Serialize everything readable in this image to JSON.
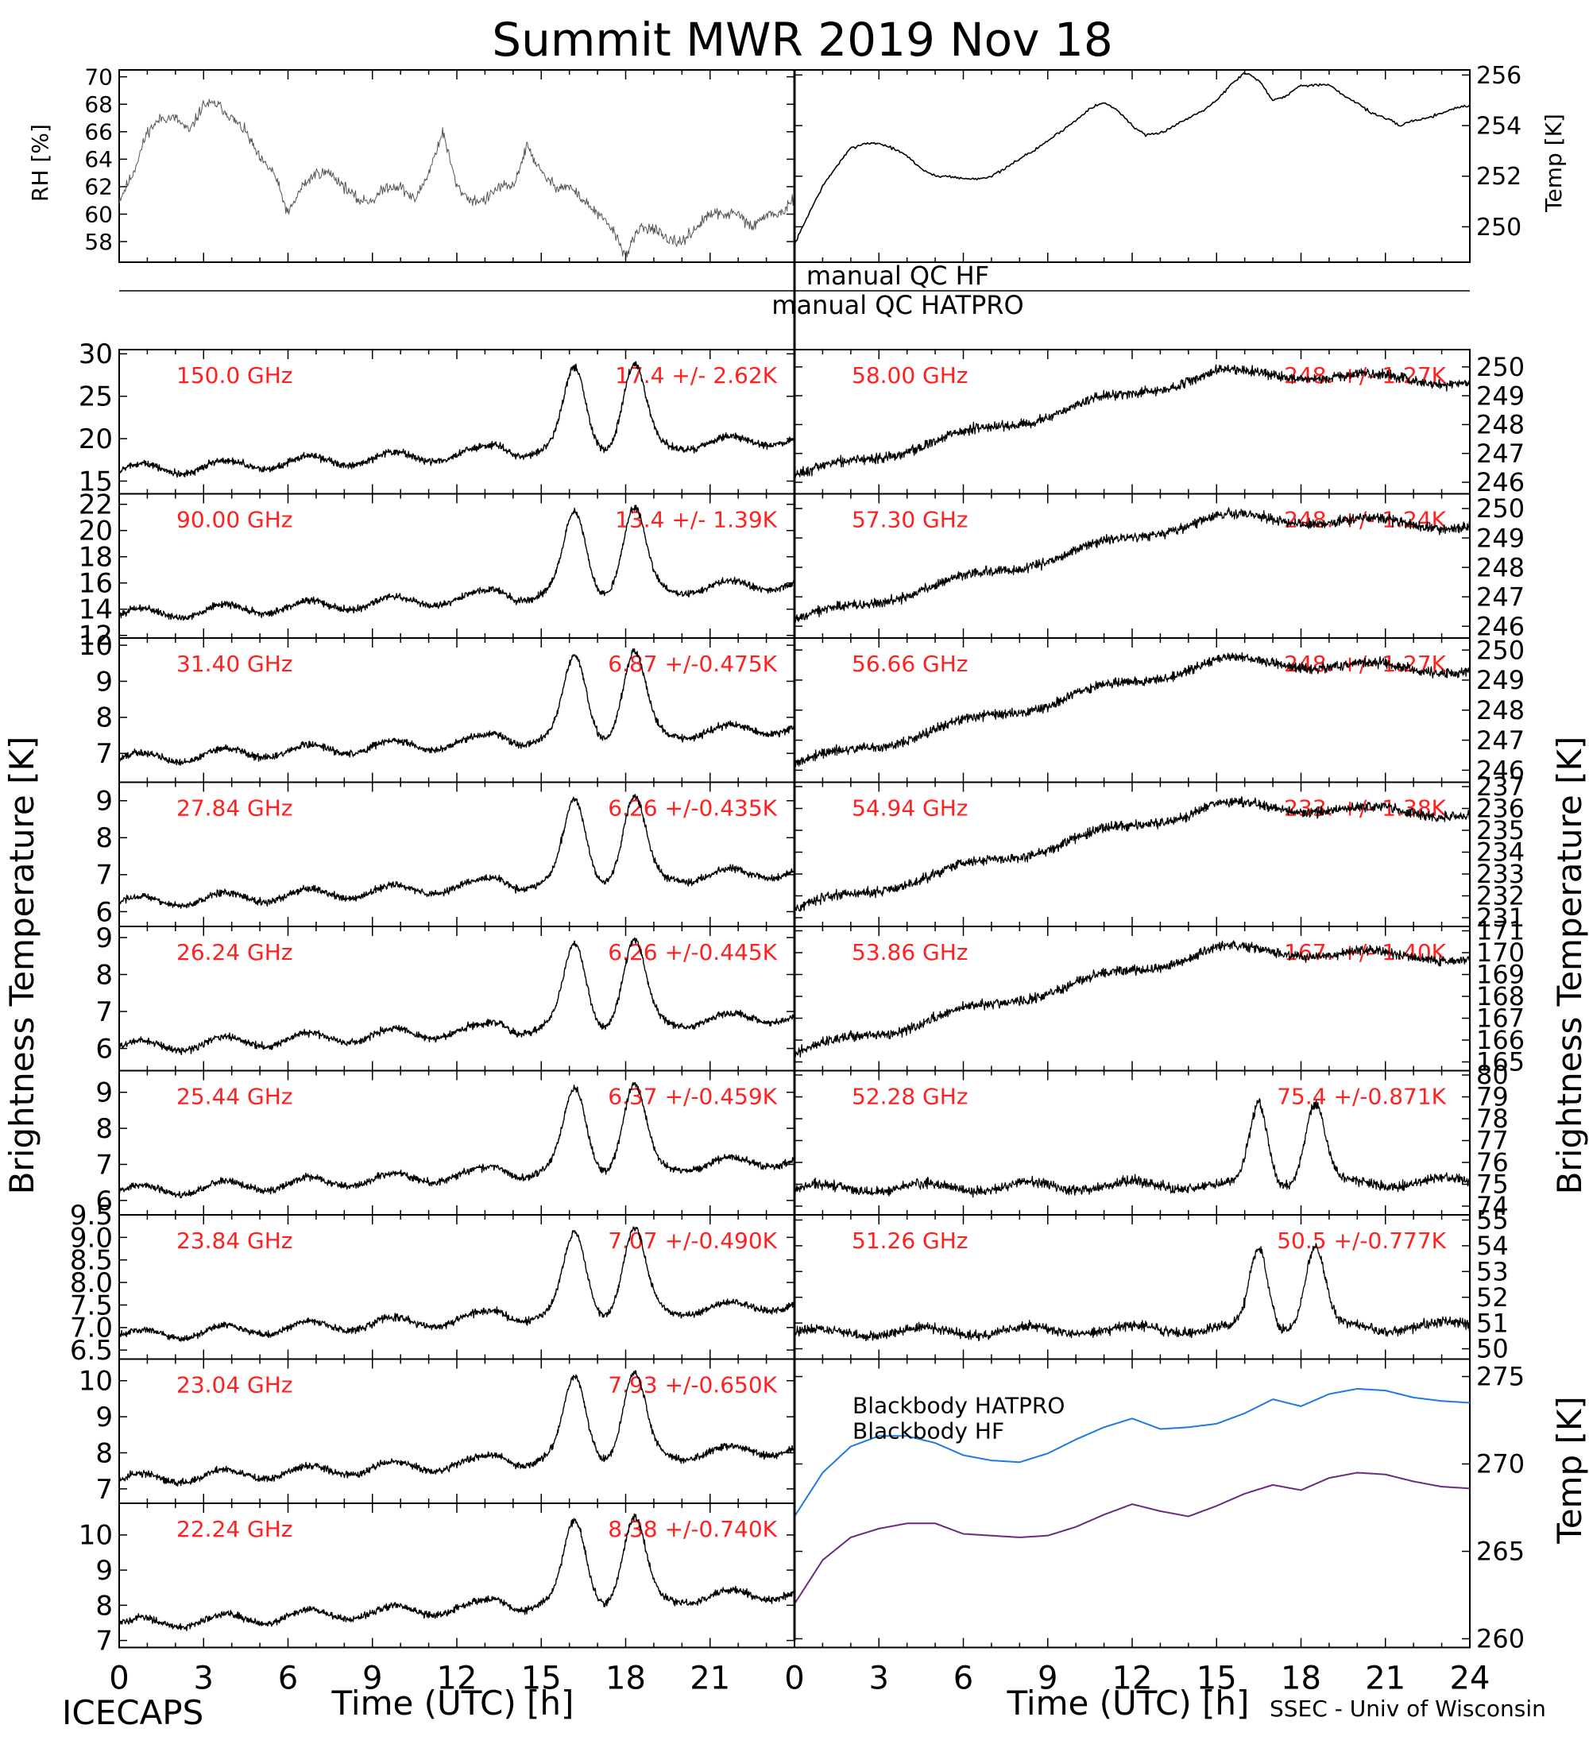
{
  "title": "Summit MWR 2019 Nov 18",
  "footer": {
    "left": "ICECAPS",
    "right": "SSEC - Univ of Wisconsin"
  },
  "colors": {
    "trace": "#000000",
    "label": "#ff2020",
    "bb_hatpro": "#1e78e6",
    "bb_hf": "#6a2a80"
  },
  "top": {
    "rh": {
      "ylabel": "RH [%]",
      "yticks": [
        "58",
        "60",
        "62",
        "64",
        "66",
        "68",
        "70"
      ],
      "ylim": [
        56.5,
        70.5
      ]
    },
    "temp": {
      "ylabel": "Temp [K]",
      "yticks": [
        "250",
        "252",
        "254",
        "256"
      ],
      "ylim": [
        248.6,
        256.2
      ]
    }
  },
  "qc": {
    "hf": "manual QC HF",
    "hatpro": "manual QC HATPRO"
  },
  "side_labels": {
    "left": "Brightness Temperature [K]",
    "right": "Brightness Temperature [K]",
    "right_bottom": "Temp [K]"
  },
  "x_axis": {
    "label": "Time (UTC) [h]",
    "ticks_left": [
      "0",
      "3",
      "6",
      "9",
      "12",
      "15",
      "18",
      "21"
    ],
    "ticks_right": [
      "0",
      "3",
      "6",
      "9",
      "12",
      "15",
      "18",
      "21",
      "24"
    ],
    "xlim": [
      0,
      24
    ]
  },
  "panels": {
    "left": [
      {
        "freq": "150.0 GHz",
        "stat": "17.4 +/- 2.62K",
        "yticks": [
          "15",
          "20",
          "25",
          "30"
        ],
        "ylim": [
          13.5,
          30.5
        ]
      },
      {
        "freq": "90.00 GHz",
        "stat": "13.4 +/- 1.39K",
        "yticks": [
          "12",
          "14",
          "16",
          "18",
          "20",
          "22"
        ],
        "ylim": [
          11.8,
          22.8
        ]
      },
      {
        "freq": "31.40 GHz",
        "stat": "6.87 +/-0.475K",
        "yticks": [
          "7",
          "8",
          "9",
          "10"
        ],
        "ylim": [
          6.2,
          10.2
        ]
      },
      {
        "freq": "27.84 GHz",
        "stat": "6.26 +/-0.435K",
        "yticks": [
          "6",
          "7",
          "8",
          "9"
        ],
        "ylim": [
          5.6,
          9.5
        ]
      },
      {
        "freq": "26.24 GHz",
        "stat": "6.26 +/-0.445K",
        "yticks": [
          "6",
          "7",
          "8",
          "9"
        ],
        "ylim": [
          5.4,
          9.3
        ]
      },
      {
        "freq": "25.44 GHz",
        "stat": "6.37 +/-0.459K",
        "yticks": [
          "6",
          "7",
          "8",
          "9"
        ],
        "ylim": [
          5.6,
          9.6
        ]
      },
      {
        "freq": "23.84 GHz",
        "stat": "7.07 +/-0.490K",
        "yticks": [
          "6.5",
          "7.0",
          "7.5",
          "8.0",
          "8.5",
          "9.0",
          "9.5"
        ],
        "ylim": [
          6.3,
          9.5
        ]
      },
      {
        "freq": "23.04 GHz",
        "stat": "7.93 +/-0.650K",
        "yticks": [
          "7",
          "8",
          "9",
          "10"
        ],
        "ylim": [
          6.6,
          10.6
        ]
      },
      {
        "freq": "22.24 GHz",
        "stat": "8.38 +/-0.740K",
        "yticks": [
          "7",
          "8",
          "9",
          "10"
        ],
        "ylim": [
          6.8,
          10.9
        ]
      }
    ],
    "right": [
      {
        "freq": "58.00 GHz",
        "stat": "248. +/- 1.27K",
        "yticks": [
          "246",
          "247",
          "248",
          "249",
          "250"
        ],
        "ylim": [
          245.6,
          250.6
        ]
      },
      {
        "freq": "57.30 GHz",
        "stat": "248. +/- 1.24K",
        "yticks": [
          "246",
          "247",
          "248",
          "249",
          "250"
        ],
        "ylim": [
          245.6,
          250.5
        ]
      },
      {
        "freq": "56.66 GHz",
        "stat": "248. +/- 1.27K",
        "yticks": [
          "246",
          "247",
          "248",
          "249",
          "250"
        ],
        "ylim": [
          245.6,
          250.4
        ]
      },
      {
        "freq": "54.94 GHz",
        "stat": "233. +/- 1.38K",
        "yticks": [
          "231",
          "232",
          "233",
          "234",
          "235",
          "236",
          "237"
        ],
        "ylim": [
          230.6,
          237.2
        ]
      },
      {
        "freq": "53.86 GHz",
        "stat": "167. +/- 1.40K",
        "yticks": [
          "165",
          "166",
          "167",
          "168",
          "169",
          "170",
          "171"
        ],
        "ylim": [
          164.6,
          171.2
        ]
      },
      {
        "freq": "52.28 GHz",
        "stat": "75.4 +/-0.871K",
        "yticks": [
          "74",
          "75",
          "76",
          "77",
          "78",
          "79",
          "80"
        ],
        "ylim": [
          73.6,
          80.2
        ]
      },
      {
        "freq": "51.26 GHz",
        "stat": "50.5 +/-0.777K",
        "yticks": [
          "50",
          "51",
          "52",
          "53",
          "54",
          "55"
        ],
        "ylim": [
          49.6,
          55.2
        ]
      }
    ]
  },
  "blackbody": {
    "series": [
      {
        "name": "Blackbody HATPRO"
      },
      {
        "name": "Blackbody HF"
      }
    ],
    "yticks": [
      "260",
      "265",
      "270",
      "275"
    ],
    "ylim": [
      259.5,
      276
    ]
  },
  "chart_data": {
    "type": "line",
    "x_unit": "h UTC",
    "rh": {
      "x": [
        0,
        0.5,
        1,
        1.5,
        2,
        2.5,
        3,
        3.5,
        4,
        4.5,
        5,
        5.5,
        6,
        6.5,
        7,
        7.5,
        8,
        8.5,
        9,
        9.5,
        10,
        10.5,
        11,
        11.5,
        12,
        12.5,
        13,
        13.5,
        14,
        14.5,
        15,
        15.5,
        16,
        16.5,
        17,
        17.5,
        18,
        18.5,
        19,
        19.5,
        20,
        20.5,
        21,
        21.5,
        22,
        22.5,
        23,
        23.5,
        24
      ],
      "y": [
        61,
        63,
        66,
        67,
        67,
        66,
        68,
        68,
        67,
        66,
        64,
        63,
        60,
        62,
        63,
        63,
        62,
        61,
        61,
        62,
        62,
        61,
        63,
        66,
        62,
        61,
        61,
        62,
        62,
        65,
        63,
        62,
        62,
        61,
        60,
        59,
        57,
        59,
        59,
        58,
        58,
        59,
        60,
        60,
        60,
        59,
        60,
        60,
        61
      ]
    },
    "temp": {
      "x": [
        0,
        0.5,
        1,
        1.5,
        2,
        2.5,
        3,
        3.5,
        4,
        4.5,
        5,
        5.5,
        6,
        6.5,
        7,
        7.5,
        8,
        8.5,
        9,
        9.5,
        10,
        10.5,
        11,
        11.5,
        12,
        12.5,
        13,
        13.5,
        14,
        14.5,
        15,
        15.5,
        16,
        16.5,
        17,
        17.5,
        18,
        18.5,
        19,
        19.5,
        20,
        20.5,
        21,
        21.5,
        22,
        22.5,
        23,
        23.5,
        24
      ],
      "y": [
        249.3,
        250.5,
        251.6,
        252.4,
        253.1,
        253.3,
        253.3,
        253.1,
        252.8,
        252.3,
        252.0,
        252.0,
        251.9,
        251.9,
        252.0,
        252.3,
        252.7,
        253.0,
        253.4,
        253.8,
        254.2,
        254.7,
        254.9,
        254.6,
        254.0,
        253.6,
        253.7,
        254.0,
        254.3,
        254.6,
        255.0,
        255.6,
        256.1,
        255.8,
        255.0,
        255.2,
        255.6,
        255.6,
        255.6,
        255.2,
        254.9,
        254.5,
        254.3,
        254.0,
        254.2,
        254.3,
        254.5,
        254.7,
        254.8
      ]
    },
    "bb_hatpro": {
      "x": [
        0,
        1,
        2,
        3,
        4,
        5,
        6,
        7,
        8,
        9,
        10,
        11,
        12,
        13,
        14,
        15,
        16,
        17,
        18,
        19,
        20,
        21,
        22,
        23,
        24
      ],
      "y": [
        267,
        269.5,
        271,
        271.6,
        271.6,
        271.2,
        270.5,
        270.2,
        270.1,
        270.6,
        271.4,
        272.1,
        272.6,
        272.0,
        272.1,
        272.3,
        272.9,
        273.7,
        273.3,
        274.0,
        274.3,
        274.2,
        273.8,
        273.6,
        273.5
      ]
    },
    "bb_hf": {
      "x": [
        0,
        1,
        2,
        3,
        4,
        5,
        6,
        7,
        8,
        9,
        10,
        11,
        12,
        13,
        14,
        15,
        16,
        17,
        18,
        19,
        20,
        21,
        22,
        23,
        24
      ],
      "y": [
        262,
        264.5,
        265.8,
        266.3,
        266.6,
        266.6,
        266.0,
        265.9,
        265.8,
        265.9,
        266.4,
        267.1,
        267.7,
        267.3,
        267.0,
        267.6,
        268.3,
        268.8,
        268.5,
        269.2,
        269.5,
        269.4,
        269.0,
        268.7,
        268.6
      ]
    }
  }
}
